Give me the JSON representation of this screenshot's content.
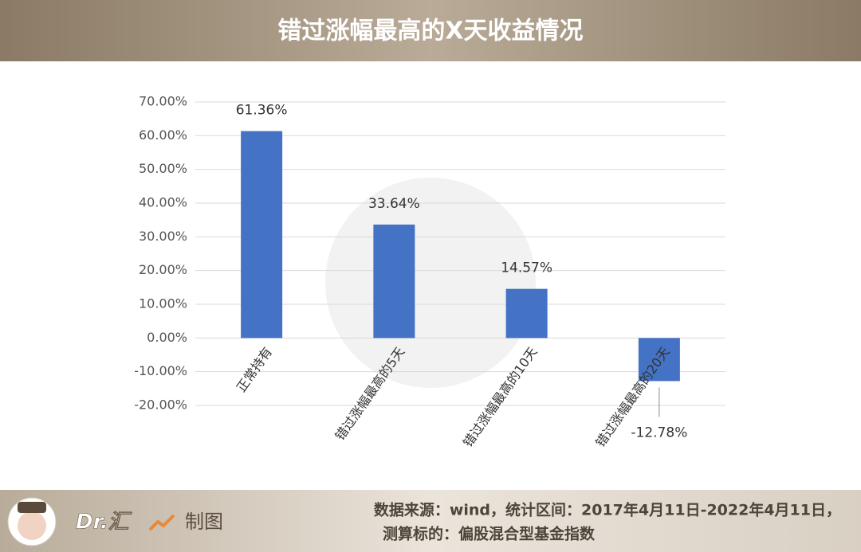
{
  "chart_data": {
    "type": "bar",
    "title": "错过涨幅最高的X天收益情况",
    "categories": [
      "正常持有",
      "错过涨幅最高的5天",
      "错过涨幅最高的10天",
      "错过涨幅最高的20天"
    ],
    "values": [
      61.36,
      33.64,
      14.57,
      -12.78
    ],
    "value_labels": [
      "61.36%",
      "33.64%",
      "14.57%",
      "-12.78%"
    ],
    "color": "#4472c4",
    "ylim": [
      -20,
      70
    ],
    "yticks": [
      {
        "value": -20,
        "label": "-20.00%"
      },
      {
        "value": -10,
        "label": "-10.00%"
      },
      {
        "value": 0,
        "label": "0.00%"
      },
      {
        "value": 10,
        "label": "10.00%"
      },
      {
        "value": 20,
        "label": "20.00%"
      },
      {
        "value": 30,
        "label": "30.00%"
      },
      {
        "value": 40,
        "label": "40.00%"
      },
      {
        "value": 50,
        "label": "50.00%"
      },
      {
        "value": 60,
        "label": "60.00%"
      },
      {
        "value": 70,
        "label": "70.00%"
      }
    ],
    "grid": true
  },
  "footer": {
    "brand": "Dr.汇",
    "made_by": "制图",
    "source_line1": "数据来源：wind，统计区间：2017年4月11日-2022年4月11日，",
    "source_line2": "测算标的：偏股混合型基金指数"
  }
}
